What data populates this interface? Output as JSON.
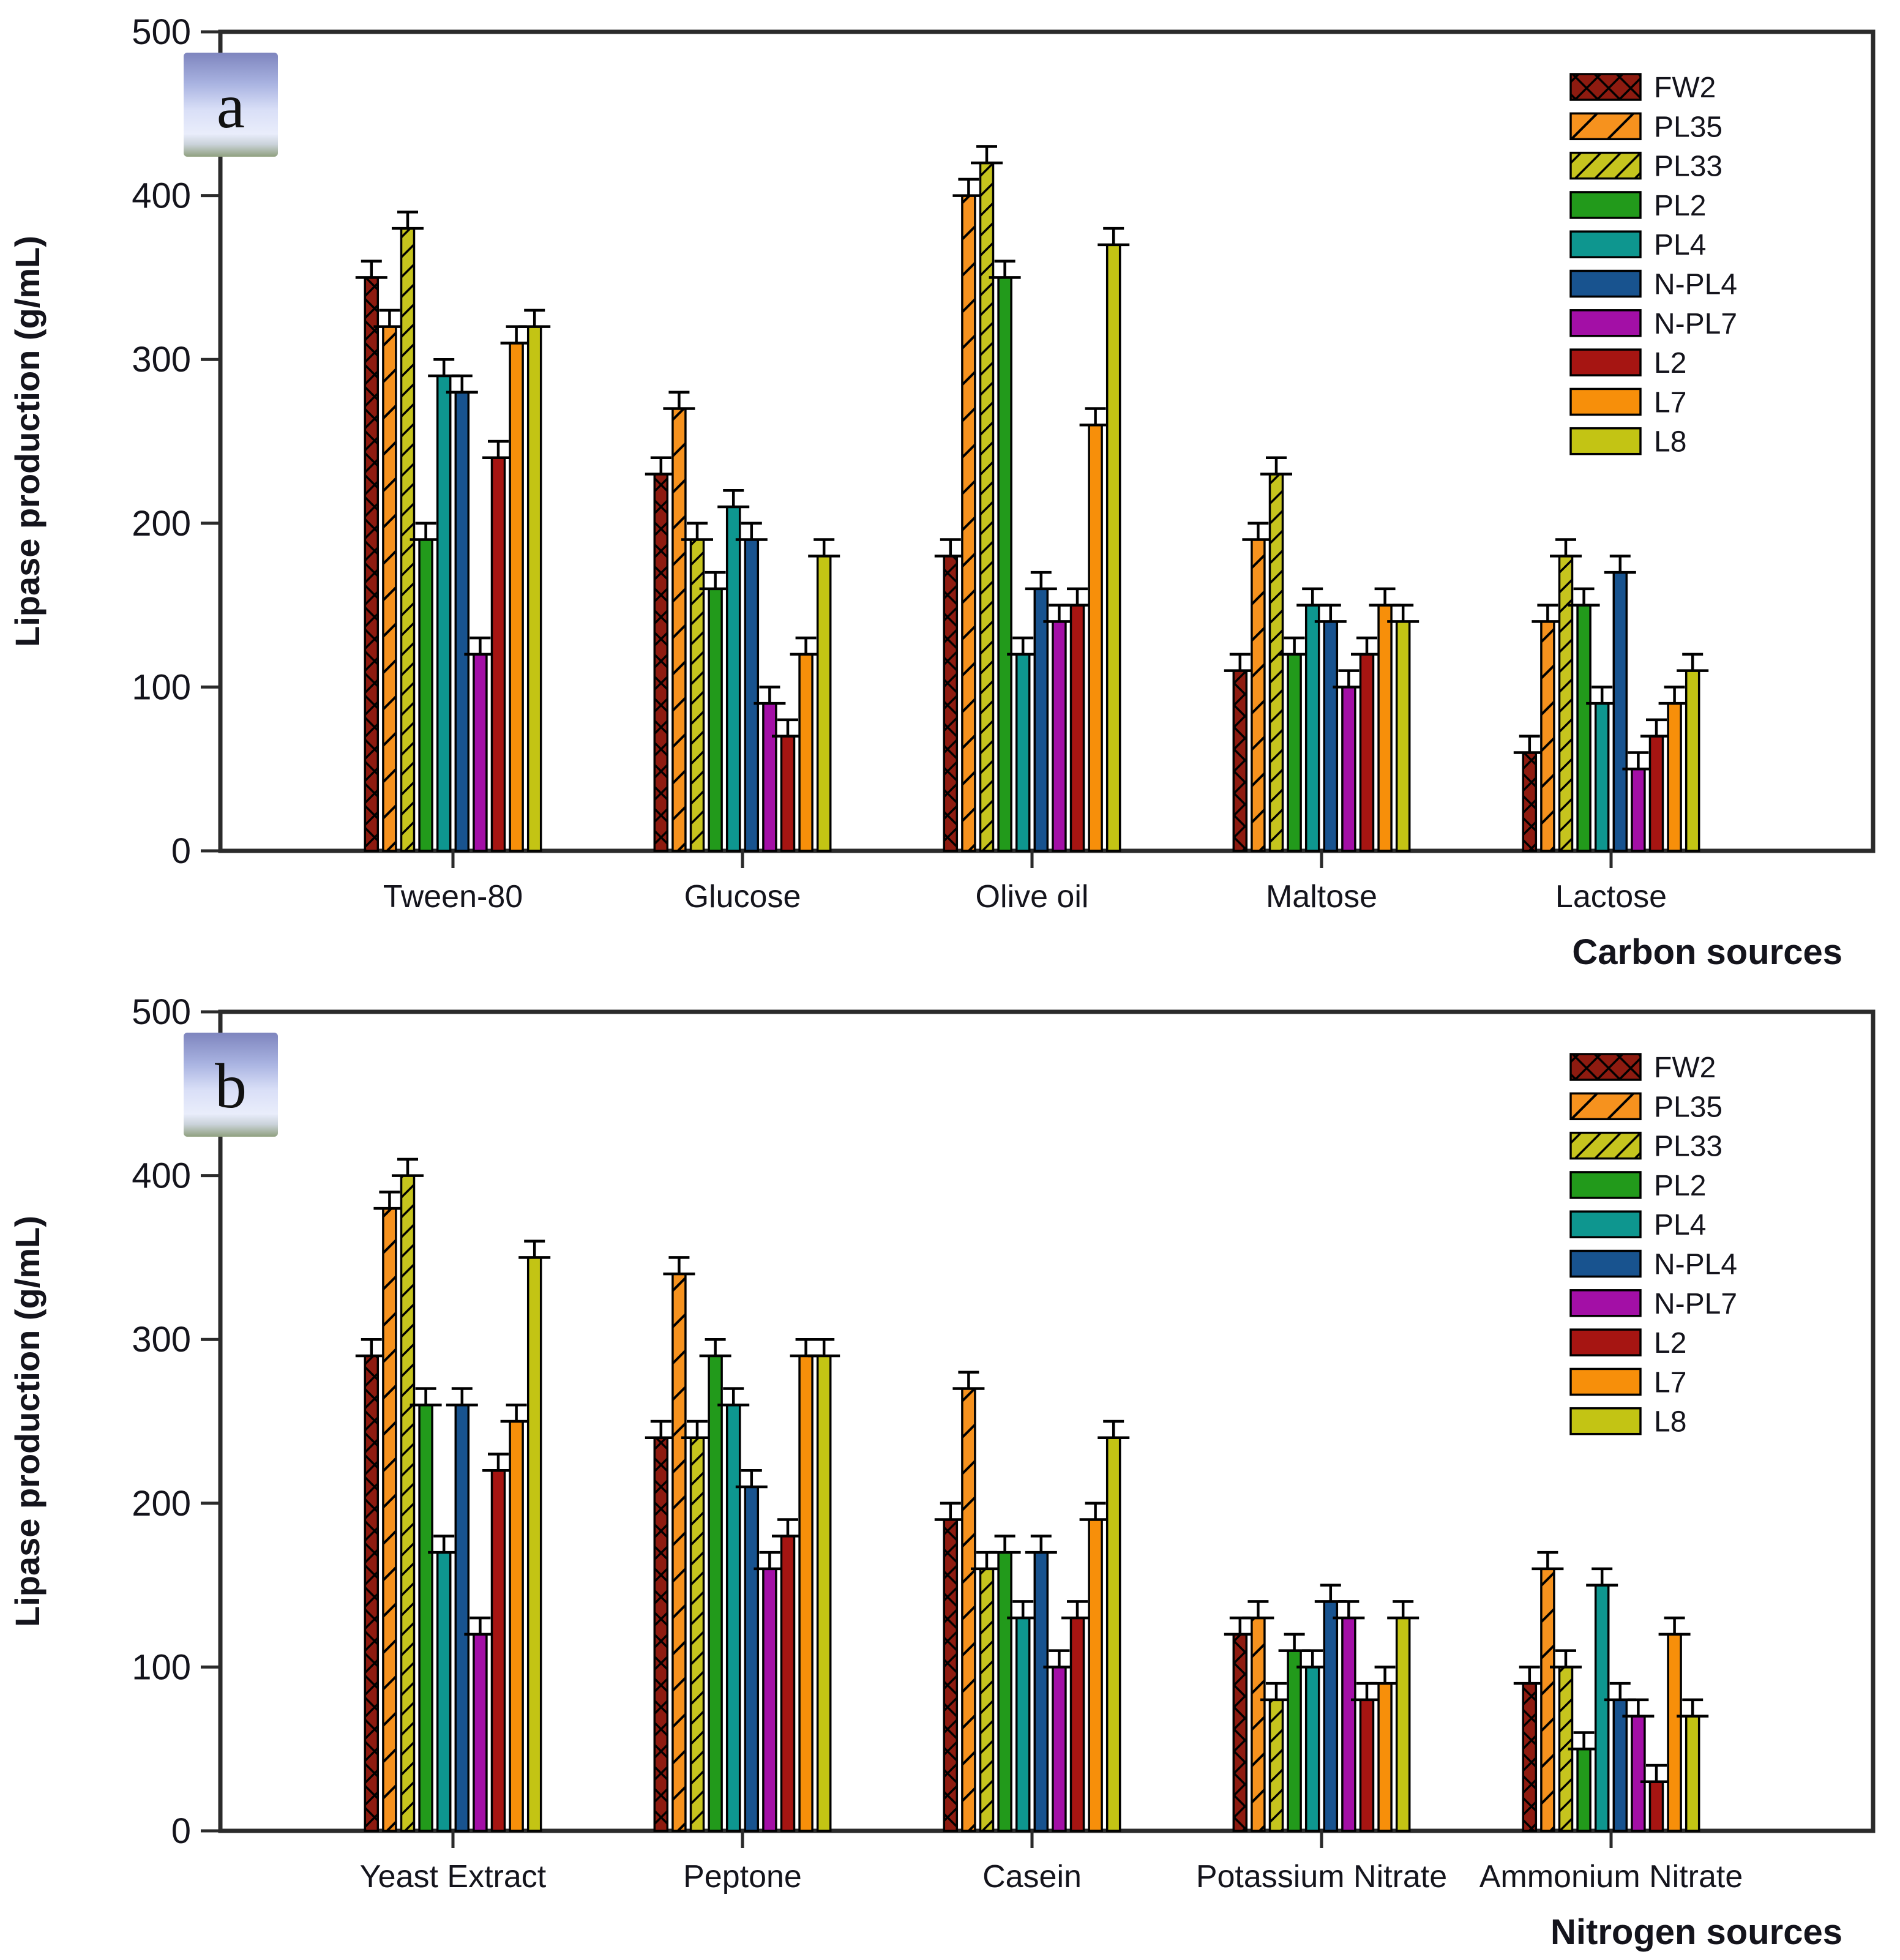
{
  "figure": {
    "panel_letters": [
      "a",
      "b"
    ],
    "background": "#ffffff",
    "axis_color": "#2b2b2b",
    "text_color": "#14141c"
  },
  "series_styles": [
    {
      "name": "FW2",
      "color": "#8E1B10",
      "hatch": "cross"
    },
    {
      "name": "PL35",
      "color": "#F6921E",
      "hatch": "diag"
    },
    {
      "name": "PL33",
      "color": "#C6C41E",
      "hatch": "diag-dense"
    },
    {
      "name": "PL2",
      "color": "#229A1B",
      "hatch": "none"
    },
    {
      "name": "PL4",
      "color": "#0E968F",
      "hatch": "none"
    },
    {
      "name": "N-PL4",
      "color": "#18538F",
      "hatch": "none"
    },
    {
      "name": "N-PL7",
      "color": "#A30FA6",
      "hatch": "none"
    },
    {
      "name": "L2",
      "color": "#A61512",
      "hatch": "none"
    },
    {
      "name": "L7",
      "color": "#F78F0A",
      "hatch": "none"
    },
    {
      "name": "L8",
      "color": "#C3C414",
      "hatch": "none"
    }
  ],
  "chart_data": [
    {
      "type": "bar",
      "panel": "a",
      "title": "",
      "xlabel": "Carbon sources",
      "ylabel": "Lipase production (g/mL)",
      "ylim": [
        0,
        500
      ],
      "ytick_step": 100,
      "yticks": [
        "0",
        "100",
        "200",
        "300",
        "400",
        "500"
      ],
      "grid": false,
      "legend_position": "upper right",
      "error_bar_value": 10,
      "categories": [
        "Tween-80",
        "Glucose",
        "Olive oil",
        "Maltose",
        "Lactose"
      ],
      "series": [
        {
          "name": "FW2",
          "values": [
            350,
            230,
            180,
            110,
            60
          ]
        },
        {
          "name": "PL35",
          "values": [
            320,
            270,
            400,
            190,
            140
          ]
        },
        {
          "name": "PL33",
          "values": [
            380,
            190,
            420,
            230,
            180
          ]
        },
        {
          "name": "PL2",
          "values": [
            190,
            160,
            350,
            120,
            150
          ]
        },
        {
          "name": "PL4",
          "values": [
            290,
            210,
            120,
            150,
            90
          ]
        },
        {
          "name": "N-PL4",
          "values": [
            280,
            190,
            160,
            140,
            170
          ]
        },
        {
          "name": "N-PL7",
          "values": [
            120,
            90,
            140,
            100,
            50
          ]
        },
        {
          "name": "L2",
          "values": [
            240,
            70,
            150,
            120,
            70
          ]
        },
        {
          "name": "L7",
          "values": [
            310,
            120,
            260,
            150,
            90
          ]
        },
        {
          "name": "L8",
          "values": [
            320,
            180,
            370,
            140,
            110
          ]
        }
      ]
    },
    {
      "type": "bar",
      "panel": "b",
      "title": "",
      "xlabel": "Nitrogen sources",
      "ylabel": "Lipase production (g/mL)",
      "ylim": [
        0,
        500
      ],
      "ytick_step": 100,
      "yticks": [
        "0",
        "100",
        "200",
        "300",
        "400",
        "500"
      ],
      "grid": false,
      "legend_position": "upper right",
      "error_bar_value": 10,
      "categories": [
        "Yeast Extract",
        "Peptone",
        "Casein",
        "Potassium Nitrate",
        "Ammonium Nitrate"
      ],
      "series": [
        {
          "name": "FW2",
          "values": [
            290,
            240,
            190,
            120,
            90
          ]
        },
        {
          "name": "PL35",
          "values": [
            380,
            340,
            270,
            130,
            160
          ]
        },
        {
          "name": "PL33",
          "values": [
            400,
            240,
            160,
            80,
            100
          ]
        },
        {
          "name": "PL2",
          "values": [
            260,
            290,
            170,
            110,
            50
          ]
        },
        {
          "name": "PL4",
          "values": [
            170,
            260,
            130,
            100,
            150
          ]
        },
        {
          "name": "N-PL4",
          "values": [
            260,
            210,
            170,
            140,
            80
          ]
        },
        {
          "name": "N-PL7",
          "values": [
            120,
            160,
            100,
            130,
            70
          ]
        },
        {
          "name": "L2",
          "values": [
            220,
            180,
            130,
            80,
            30
          ]
        },
        {
          "name": "L7",
          "values": [
            250,
            290,
            190,
            90,
            120
          ]
        },
        {
          "name": "L8",
          "values": [
            350,
            290,
            240,
            130,
            70
          ]
        }
      ]
    }
  ]
}
